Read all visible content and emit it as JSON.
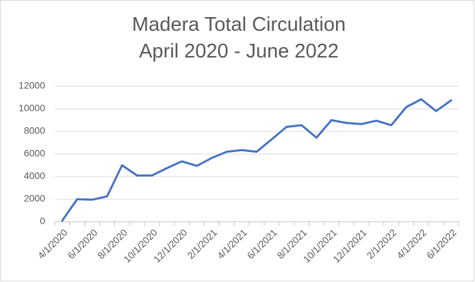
{
  "chart_data": {
    "type": "line",
    "title": "Madera Total Circulation",
    "subtitle": "April 2020 - June 2022",
    "categories": [
      "4/1/2020",
      null,
      "6/1/2020",
      null,
      "8/1/2020",
      null,
      "10/1/2020",
      null,
      "12/1/2020",
      null,
      "2/1/2021",
      null,
      "4/1/2021",
      null,
      "6/1/2021",
      null,
      "8/1/2021",
      null,
      "10/1/2021",
      null,
      "12/1/2021",
      null,
      "2/1/2022",
      null,
      "4/1/2022",
      null,
      "6/1/2022"
    ],
    "series": [
      {
        "name": "Total Circulation",
        "color": "#4472c4",
        "values": [
          100,
          2000,
          1950,
          2250,
          5000,
          4100,
          4100,
          4750,
          5350,
          4950,
          5650,
          6200,
          6350,
          6200,
          7300,
          8400,
          8550,
          7450,
          9000,
          8750,
          8650,
          8950,
          8550,
          10150,
          10850,
          9800,
          10750
        ]
      }
    ],
    "ylim": [
      0,
      12000
    ],
    "yticks": [
      0,
      2000,
      4000,
      6000,
      8000,
      10000,
      12000
    ],
    "grid": true
  }
}
